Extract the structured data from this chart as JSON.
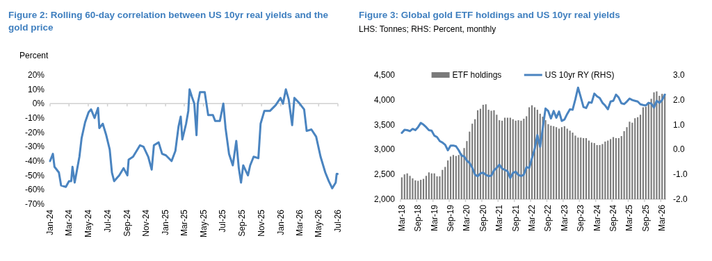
{
  "chart_data": [
    {
      "type": "line",
      "title": "Figure 2: Rolling 60-day correlation between US 10yr real yields and the gold price",
      "ylabel": "Percent",
      "xlim": [
        "2024-01-01",
        "2026-07-01"
      ],
      "xticks": [
        {
          "value": "2024-01-01",
          "label": "Jan-24"
        },
        {
          "value": "2024-03-01",
          "label": "Mar-24"
        },
        {
          "value": "2024-05-01",
          "label": "May-24"
        },
        {
          "value": "2024-07-01",
          "label": "Jul-24"
        },
        {
          "value": "2024-09-01",
          "label": "Sep-24"
        },
        {
          "value": "2024-11-01",
          "label": "Nov-24"
        },
        {
          "value": "2025-01-01",
          "label": "Jan-25"
        },
        {
          "value": "2025-03-01",
          "label": "Mar-25"
        },
        {
          "value": "2025-05-01",
          "label": "May-25"
        },
        {
          "value": "2025-07-01",
          "label": "Jul-25"
        },
        {
          "value": "2025-09-01",
          "label": "Sep-25"
        },
        {
          "value": "2025-11-01",
          "label": "Nov-25"
        },
        {
          "value": "2026-01-01",
          "label": "Jan-26"
        },
        {
          "value": "2026-03-01",
          "label": "Mar-26"
        },
        {
          "value": "2026-05-01",
          "label": "May-26"
        },
        {
          "value": "2026-07-01",
          "label": "Jul-26"
        }
      ],
      "ylim": [
        -70,
        20
      ],
      "yticks": [
        {
          "value": 20,
          "label": "20%"
        },
        {
          "value": 10,
          "label": "10%"
        },
        {
          "value": 0,
          "label": "0%"
        },
        {
          "value": -10,
          "label": "-10%"
        },
        {
          "value": -20,
          "label": "-20%"
        },
        {
          "value": -30,
          "label": "-30%"
        },
        {
          "value": -40,
          "label": "-40%"
        },
        {
          "value": -50,
          "label": "-50%"
        },
        {
          "value": -60,
          "label": "-60%"
        },
        {
          "value": -70,
          "label": "-70%"
        }
      ],
      "x": [
        "2024-01-01",
        "2024-01-10",
        "2024-01-15",
        "2024-01-29",
        "2024-02-05",
        "2024-02-20",
        "2024-03-01",
        "2024-03-08",
        "2024-03-12",
        "2024-03-19",
        "2024-04-03",
        "2024-04-10",
        "2024-04-21",
        "2024-05-02",
        "2024-05-10",
        "2024-05-21",
        "2024-06-01",
        "2024-06-05",
        "2024-06-16",
        "2024-06-27",
        "2024-07-08",
        "2024-07-15",
        "2024-07-22",
        "2024-08-07",
        "2024-08-21",
        "2024-09-02",
        "2024-09-06",
        "2024-09-20",
        "2024-10-01",
        "2024-10-12",
        "2024-10-23",
        "2024-11-07",
        "2024-11-18",
        "2024-11-25",
        "2024-12-10",
        "2024-12-21",
        "2025-01-02",
        "2025-01-20",
        "2025-02-01",
        "2025-02-11",
        "2025-02-18",
        "2025-02-23",
        "2025-03-07",
        "2025-03-14",
        "2025-03-18",
        "2025-03-25",
        "2025-04-02",
        "2025-04-09",
        "2025-04-13",
        "2025-04-20",
        "2025-05-05",
        "2025-05-16",
        "2025-05-31",
        "2025-06-07",
        "2025-06-22",
        "2025-07-03",
        "2025-07-10",
        "2025-07-21",
        "2025-08-02",
        "2025-08-13",
        "2025-08-21",
        "2025-08-28",
        "2025-09-04",
        "2025-09-19",
        "2025-09-26",
        "2025-10-07",
        "2025-10-22",
        "2025-10-29",
        "2025-11-10",
        "2025-11-28",
        "2025-12-16",
        "2025-12-31",
        "2026-01-08",
        "2026-01-17",
        "2026-01-26",
        "2026-02-06",
        "2026-02-13",
        "2026-03-02",
        "2026-03-16",
        "2026-03-24",
        "2026-04-08",
        "2026-04-23",
        "2026-05-07",
        "2026-05-22",
        "2026-06-02",
        "2026-06-13",
        "2026-06-24",
        "2026-06-27",
        "2026-06-30"
      ],
      "series": [
        {
          "color": "#4a84c0",
          "values": [
            -40,
            -35,
            -44,
            -48,
            -57,
            -58,
            -54,
            -54,
            -44,
            -55,
            -37,
            -24,
            -13,
            -6,
            -4,
            -10,
            -3,
            -17,
            -14,
            -22,
            -32,
            -48,
            -54,
            -50,
            -45,
            -50,
            -39,
            -37,
            -33,
            -29,
            -30,
            -37,
            -46,
            -29,
            -27,
            -35,
            -36,
            -40,
            -33,
            -16,
            -9,
            -25,
            -14,
            -5,
            10,
            5,
            0,
            -22,
            0,
            8,
            8,
            -8,
            -8,
            -12,
            -12,
            0,
            -17,
            -35,
            -43,
            -26,
            -45,
            -55,
            -43,
            -50,
            -43,
            -37,
            -38,
            -14,
            -5,
            -5,
            -1,
            4,
            0,
            10,
            3,
            -15,
            4,
            0,
            -4,
            -19,
            -18,
            -23,
            -37,
            -48,
            -54,
            -59,
            -55,
            -49,
            -49
          ]
        }
      ]
    },
    {
      "type": "bar",
      "title": "Figure 3: Global gold ETF holdings and US 10yr real yields",
      "subtitle": "LHS: Tonnes; RHS: Percent, monthly",
      "categories": [
        "Mar-18",
        null,
        null,
        null,
        null,
        null,
        "Sep-18",
        null,
        null,
        null,
        null,
        null,
        "Mar-19",
        null,
        null,
        null,
        null,
        null,
        "Sep-19",
        null,
        null,
        null,
        null,
        null,
        "Mar-20",
        null,
        null,
        null,
        null,
        null,
        "Sep-20",
        null,
        null,
        null,
        null,
        null,
        "Mar-21",
        null,
        null,
        null,
        null,
        null,
        "Sep-21",
        null,
        null,
        null,
        null,
        null,
        "Mar-22",
        null,
        null,
        null,
        null,
        null,
        "Sep-22",
        null,
        null,
        null,
        null,
        null,
        "Mar-23",
        null,
        null,
        null,
        null,
        null,
        "Sep-23",
        null,
        null,
        null,
        null,
        null,
        "Mar-24",
        null,
        null,
        null,
        null,
        null,
        "Sep-24",
        null,
        null,
        null,
        null,
        null,
        "Mar-25",
        null,
        null,
        null,
        null,
        null,
        "Sep-25",
        null,
        null,
        null,
        null,
        null,
        "Mar-26",
        null
      ],
      "ylim": [
        2000,
        4500
      ],
      "yticks": [
        {
          "value": 2000,
          "label": "2,000"
        },
        {
          "value": 2500,
          "label": "2,500"
        },
        {
          "value": 3000,
          "label": "3,000"
        },
        {
          "value": 3500,
          "label": "3,500"
        },
        {
          "value": 4000,
          "label": "4,000"
        },
        {
          "value": 4500,
          "label": "4,500"
        }
      ],
      "y2lim": [
        -2,
        3
      ],
      "y2ticks": [
        {
          "value": 3,
          "label": "3.0"
        },
        {
          "value": 2,
          "label": "2.0"
        },
        {
          "value": 1,
          "label": "1.0"
        },
        {
          "value": 0,
          "label": "0.0"
        },
        {
          "value": -1,
          "label": "-1.0"
        },
        {
          "value": -2,
          "label": "-2.0"
        }
      ],
      "legend": "top",
      "series": [
        {
          "name": "ETF holdings",
          "color": "#7a7a7a",
          "values": [
            2440,
            2500,
            2520,
            2470,
            2420,
            2380,
            2370,
            2390,
            2410,
            2470,
            2540,
            2520,
            2520,
            2460,
            2460,
            2590,
            2650,
            2780,
            2860,
            2890,
            2870,
            2890,
            2920,
            3030,
            3170,
            3360,
            3520,
            3610,
            3790,
            3820,
            3900,
            3910,
            3800,
            3780,
            3790,
            3700,
            3590,
            3580,
            3640,
            3640,
            3640,
            3610,
            3580,
            3590,
            3580,
            3620,
            3670,
            3850,
            3890,
            3850,
            3800,
            3720,
            3660,
            3590,
            3510,
            3480,
            3470,
            3450,
            3420,
            3450,
            3470,
            3420,
            3380,
            3340,
            3280,
            3240,
            3240,
            3230,
            3230,
            3180,
            3140,
            3130,
            3090,
            3090,
            3110,
            3160,
            3180,
            3210,
            3250,
            3230,
            3230,
            3270,
            3370,
            3450,
            3560,
            3540,
            3630,
            3650,
            3700,
            3850,
            3860,
            3940,
            4020,
            4150,
            4170,
            4080,
            4120,
            4120
          ]
        },
        {
          "name": "US 10yr RY (RHS)",
          "type": "line",
          "axis": "y2",
          "color": "#4a84c0",
          "values": [
            0.67,
            0.79,
            0.78,
            0.74,
            0.83,
            0.78,
            0.9,
            1.07,
            1.0,
            0.9,
            0.78,
            0.76,
            0.56,
            0.5,
            0.34,
            0.28,
            0.19,
            -0.03,
            0.16,
            0.16,
            0.13,
            -0.03,
            -0.24,
            -0.28,
            -0.45,
            -0.54,
            -0.74,
            -1.01,
            -1.08,
            -0.96,
            -0.93,
            -1.02,
            -1.07,
            -1.05,
            -0.84,
            -0.74,
            -0.61,
            -0.77,
            -0.82,
            -0.87,
            -1.15,
            -0.94,
            -0.89,
            -1.02,
            -1.07,
            -1.01,
            -0.71,
            -0.74,
            -0.35,
            0.02,
            0.58,
            0.11,
            0.86,
            1.65,
            1.55,
            1.25,
            1.55,
            1.28,
            1.53,
            1.15,
            1.21,
            1.43,
            1.62,
            1.6,
            2.02,
            2.49,
            2.11,
            1.71,
            1.67,
            1.9,
            1.88,
            2.25,
            2.14,
            2.07,
            1.88,
            1.77,
            1.62,
            1.93,
            1.96,
            2.21,
            2.09,
            1.86,
            1.83,
            1.93,
            2.05,
            1.99,
            1.96,
            1.93,
            1.82,
            1.79,
            1.77,
            1.88,
            1.85,
            1.69,
            1.96,
            1.88,
            1.99,
            2.21
          ]
        }
      ]
    }
  ]
}
